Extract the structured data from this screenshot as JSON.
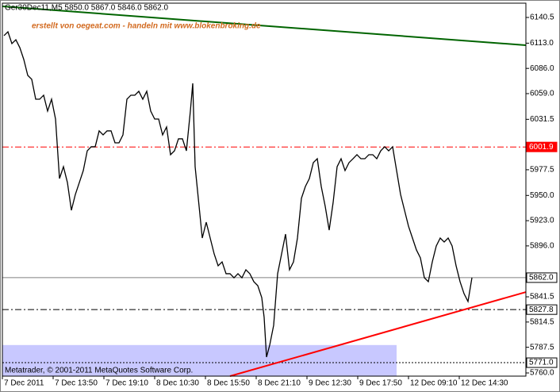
{
  "chart_data": {
    "type": "line",
    "title": "Ger30Dec11,M5  5850.0 5867.0 5846.0 5862.0",
    "annotation": "erstellt von oegeat.com - handeln mit www.blokenbroking.de",
    "footer": "Metatrader, © 2001-2011 MetaQuotes Software Corp.",
    "xlim": [
      0,
      660
    ],
    "xticks": [
      {
        "value": 0,
        "label": "7 Dec 2011"
      },
      {
        "value": 64,
        "label": "7 Dec 13:50"
      },
      {
        "value": 128,
        "label": "7 Dec 19:10"
      },
      {
        "value": 192,
        "label": "8 Dec 10:30"
      },
      {
        "value": 256,
        "label": "8 Dec 15:50"
      },
      {
        "value": 320,
        "label": "8 Dec 21:10"
      },
      {
        "value": 384,
        "label": "9 Dec 12:30"
      },
      {
        "value": 448,
        "label": "9 Dec 17:50"
      },
      {
        "value": 512,
        "label": "12 Dec 09:10"
      },
      {
        "value": 576,
        "label": "12 Dec 14:30"
      }
    ],
    "ylim": [
      5756.6,
      6155.8
    ],
    "yticks": [
      6140.5,
      {
        "value": 6113,
        "label": "6113.0"
      },
      {
        "value": 6086,
        "label": "6086.0"
      },
      {
        "value": 6059,
        "label": "6059.0"
      },
      6031.5,
      5977.5,
      {
        "value": 5950,
        "label": "5950.0"
      },
      {
        "value": 5923,
        "label": "5923.0"
      },
      {
        "value": 5896,
        "label": "5896.0"
      },
      5841.5,
      5814.5,
      5787.5,
      {
        "value": 5760,
        "label": "5760.0"
      }
    ],
    "series": [
      {
        "color": "#000000",
        "x": [
          2,
          7,
          12,
          17,
          22,
          27,
          32,
          37,
          42,
          47,
          52,
          57,
          62,
          67,
          72,
          77,
          82,
          87,
          92,
          97,
          102,
          107,
          112,
          117,
          122,
          127,
          132,
          137,
          142,
          147,
          152,
          157,
          162,
          167,
          172,
          177,
          182,
          187,
          192,
          197,
          202,
          207,
          212,
          217,
          222,
          227,
          232,
          237,
          240,
          243,
          247,
          252,
          257,
          262,
          267,
          272,
          277,
          282,
          287,
          292,
          297,
          302,
          307,
          312,
          317,
          322,
          327,
          330,
          333,
          337,
          342,
          347,
          352,
          357,
          362,
          367,
          372,
          377,
          382,
          387,
          392,
          397,
          402,
          407,
          412,
          417,
          422,
          427,
          432,
          437,
          442,
          447,
          452,
          457,
          462,
          467,
          472,
          477,
          482,
          487,
          492,
          497,
          502,
          507,
          512,
          517,
          522,
          527,
          532,
          537,
          542,
          547,
          552,
          557,
          562,
          567,
          572,
          577,
          582,
          587,
          592
        ],
        "values": [
          6121.0,
          6125.2,
          6112.5,
          6116.7,
          6108.2,
          6095.5,
          6078.5,
          6074.3,
          6053.0,
          6053.0,
          6057.3,
          6040.3,
          6053.0,
          6031.8,
          5968.1,
          5980.8,
          5963.8,
          5934.1,
          5951.1,
          5963.8,
          5976.6,
          5997.8,
          6002.1,
          6002.1,
          6019.1,
          6014.8,
          6019.1,
          6019.1,
          6006.3,
          6006.3,
          6014.8,
          6053.0,
          6057.3,
          6057.3,
          6061.5,
          6053.0,
          6061.5,
          6040.3,
          6031.8,
          6031.8,
          6014.8,
          6023.3,
          5993.6,
          5997.8,
          6010.6,
          6010.6,
          5997.8,
          6040.3,
          6070.0,
          5980.8,
          5946.9,
          5904.4,
          5921.4,
          5904.4,
          5887.4,
          5874.7,
          5878.9,
          5866.2,
          5866.2,
          5861.9,
          5866.2,
          5861.9,
          5870.4,
          5866.2,
          5857.7,
          5853.4,
          5840.7,
          5819.5,
          5777.0,
          5789.7,
          5811.0,
          5866.2,
          5887.4,
          5908.6,
          5870.4,
          5878.9,
          5904.4,
          5946.9,
          5959.6,
          5968.1,
          5985.1,
          5989.3,
          5959.6,
          5938.4,
          5912.9,
          5942.6,
          5980.8,
          5989.3,
          5976.6,
          5985.1,
          5989.3,
          5993.6,
          5989.3,
          5989.3,
          5993.6,
          5993.6,
          5989.3,
          5997.8,
          6002.1,
          5997.8,
          6002.1,
          5976.6,
          5951.1,
          5934.1,
          5917.1,
          5904.4,
          5891.7,
          5883.2,
          5861.9,
          5857.7,
          5878.9,
          5895.9,
          5904.4,
          5900.2,
          5904.4,
          5895.9,
          5874.7,
          5857.7,
          5844.9,
          5836.5,
          5862.0
        ]
      }
    ],
    "hlines": [
      {
        "value": 6001.9,
        "label": "6001.9",
        "color": "#ff0000",
        "style": "dashdot"
      },
      {
        "value": 5862,
        "label": "5862.0",
        "color": "#808080",
        "style": "solid"
      },
      {
        "value": 5827.8,
        "label": "5827.8",
        "color": "#000000",
        "style": "dashdot"
      },
      {
        "value": 5771,
        "label": "5771.0",
        "color": "#000000",
        "style": "dotted"
      }
    ],
    "trendlines": [
      {
        "color": "#006400",
        "x": [
          0,
          660
        ],
        "values": [
          6152.4,
          6110.8
        ]
      },
      {
        "color": "#ff0000",
        "x": [
          287,
          660
        ],
        "values": [
          5756.6,
          5846.6
        ]
      }
    ],
    "rectangle": {
      "color": "#c8c8ff",
      "x": [
        0,
        497
      ],
      "values": [
        5789.9,
        5756.6
      ]
    }
  }
}
